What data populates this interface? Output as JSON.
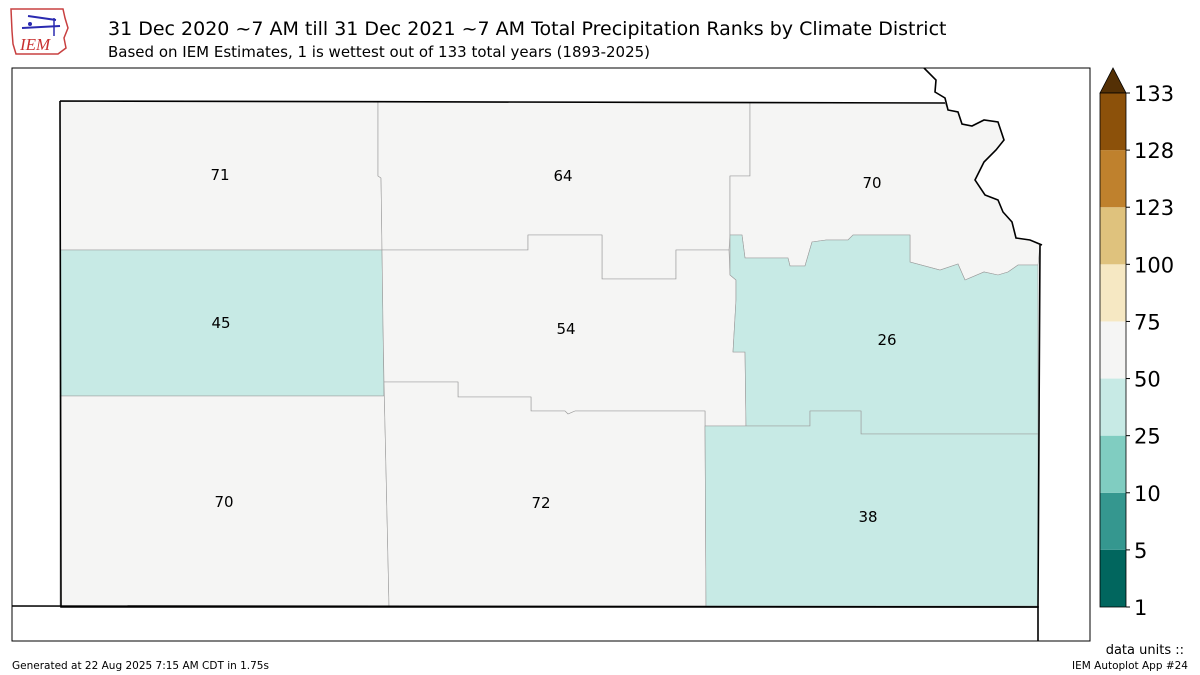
{
  "header": {
    "logo_text": "IEM",
    "title": "31 Dec 2020 ~7 AM till 31 Dec 2021 ~7 AM Total Precipitation Ranks by Climate District",
    "subtitle": "Based on IEM Estimates, 1 is wettest out of 133 total years (1893-2025)"
  },
  "map": {
    "districts": [
      {
        "id": "nw",
        "rank": "71",
        "color": "#f5f5f4"
      },
      {
        "id": "nc",
        "rank": "64",
        "color": "#f5f5f4"
      },
      {
        "id": "ne",
        "rank": "70",
        "color": "#f5f5f4"
      },
      {
        "id": "wc",
        "rank": "45",
        "color": "#c7eae5"
      },
      {
        "id": "c",
        "rank": "54",
        "color": "#f5f5f4"
      },
      {
        "id": "ec",
        "rank": "26",
        "color": "#c7eae5"
      },
      {
        "id": "sw",
        "rank": "70",
        "color": "#f5f5f4"
      },
      {
        "id": "sc",
        "rank": "72",
        "color": "#f5f5f4"
      },
      {
        "id": "se",
        "rank": "38",
        "color": "#c7eae5"
      }
    ]
  },
  "colorbar": {
    "levels": [
      "1",
      "5",
      "10",
      "25",
      "50",
      "75",
      "100",
      "123",
      "128",
      "133"
    ],
    "colors": [
      "#01665e",
      "#35978f",
      "#80cdc1",
      "#c7eae5",
      "#f5f5f4",
      "#f6e8c3",
      "#dfc27d",
      "#bf812d",
      "#8c510a"
    ],
    "over_color": "#543005",
    "units_label": "data units ::"
  },
  "footer": {
    "generated": "Generated at 22 Aug 2025 7:15 AM CDT in 1.75s",
    "app": "IEM Autoplot App #24"
  }
}
